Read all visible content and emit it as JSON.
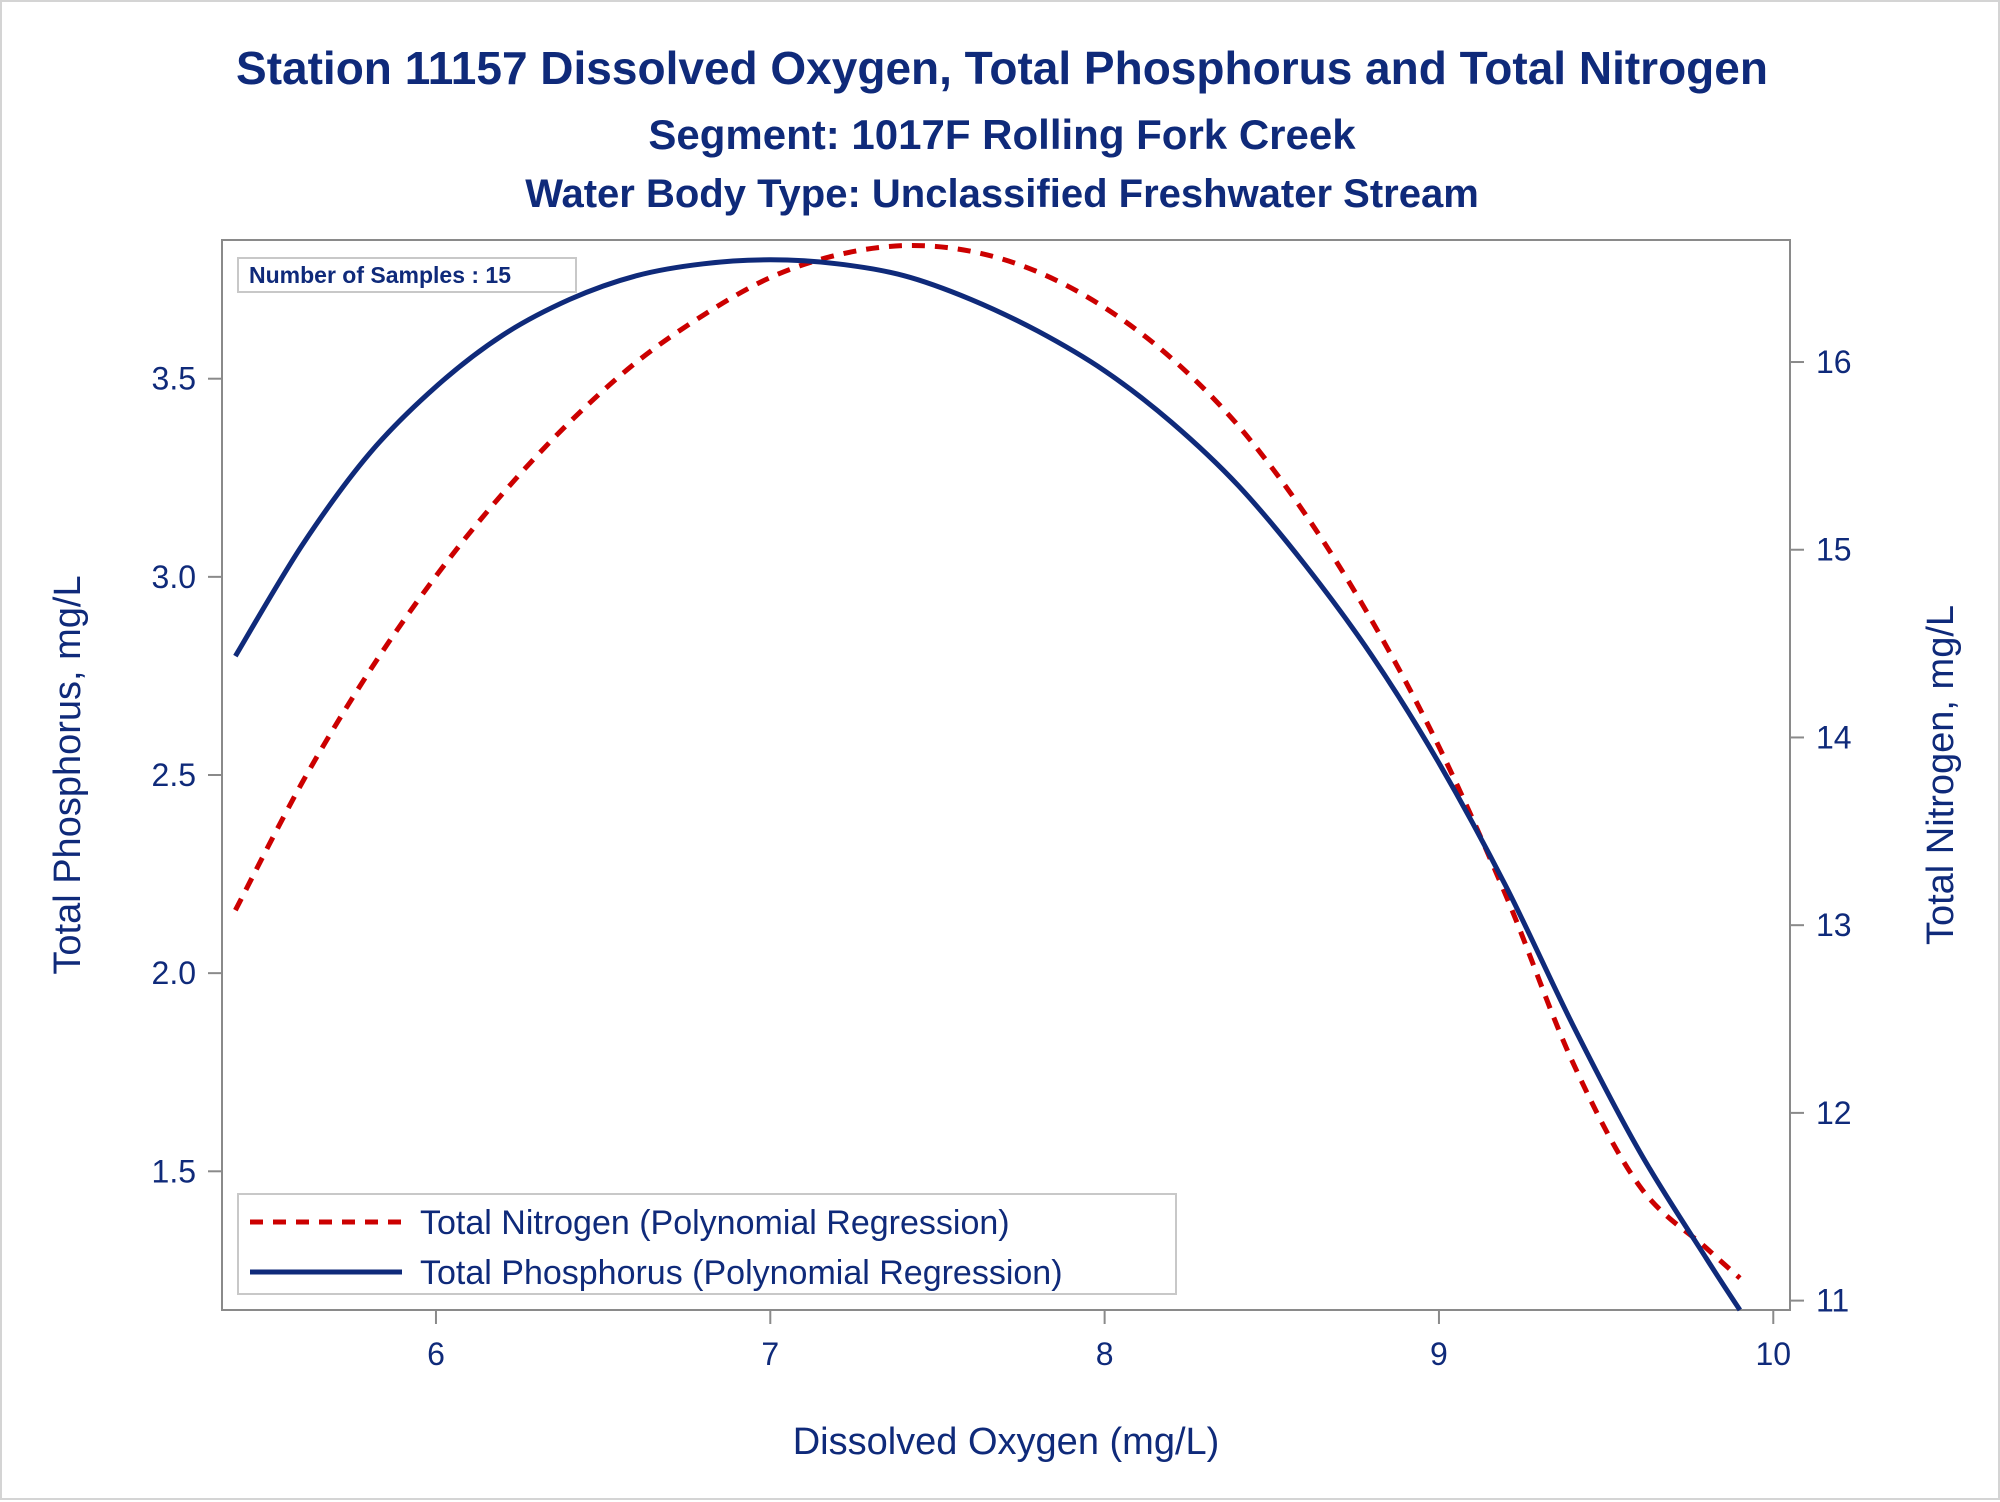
{
  "chart_data": {
    "type": "line",
    "title": "Station 11157  Dissolved Oxygen, Total Phosphorus and Total Nitrogen",
    "subtitle": "Segment: 1017F  Rolling Fork Creek",
    "subtitle2": "Water Body Type: Unclassified Freshwater Stream",
    "annotation": "Number of Samples : 15",
    "xlabel": "Dissolved Oxygen (mg/L)",
    "ylabel_left": "Total Phosphorus, mg/L",
    "ylabel_right": "Total Nitrogen, mg/L",
    "xlim": [
      5.36,
      10.05
    ],
    "ylim_left": [
      1.15,
      3.85
    ],
    "ylim_right": [
      10.95,
      16.65
    ],
    "x_ticks": [
      "6",
      "7",
      "8",
      "9",
      "10"
    ],
    "y_left_ticks": [
      "1.5",
      "2.0",
      "2.5",
      "3.0",
      "3.5"
    ],
    "y_right_ticks": [
      "11",
      "12",
      "13",
      "14",
      "15",
      "16"
    ],
    "grid": false,
    "legend_position": "bottom-left",
    "series": [
      {
        "name": "Total Nitrogen (Polynomial Regression)",
        "axis": "right",
        "color": "#cc0000",
        "dash": "dashed",
        "x": [
          5.4,
          5.6,
          5.8,
          6.0,
          6.2,
          6.4,
          6.6,
          6.8,
          7.0,
          7.2,
          7.4,
          7.6,
          7.8,
          8.0,
          8.2,
          8.4,
          8.6,
          8.8,
          9.0,
          9.2,
          9.4,
          9.6,
          9.8,
          9.9
        ],
        "values": [
          13.08,
          13.76,
          14.35,
          14.86,
          15.3,
          15.68,
          16.0,
          16.25,
          16.45,
          16.57,
          16.62,
          16.59,
          16.48,
          16.29,
          16.02,
          15.66,
          15.19,
          14.62,
          13.95,
          13.16,
          12.27,
          11.61,
          11.28,
          11.12
        ]
      },
      {
        "name": "Total Phosphorus (Polynomial Regression)",
        "axis": "left",
        "color": "#0f2a7a",
        "dash": "solid",
        "x": [
          5.4,
          5.6,
          5.8,
          6.0,
          6.2,
          6.4,
          6.6,
          6.8,
          7.0,
          7.2,
          7.4,
          7.6,
          7.8,
          8.0,
          8.2,
          8.4,
          8.6,
          8.8,
          9.0,
          9.2,
          9.4,
          9.6,
          9.8,
          9.9
        ],
        "values": [
          2.8,
          3.08,
          3.31,
          3.48,
          3.61,
          3.7,
          3.76,
          3.79,
          3.8,
          3.79,
          3.76,
          3.7,
          3.62,
          3.52,
          3.39,
          3.23,
          3.03,
          2.8,
          2.53,
          2.22,
          1.87,
          1.55,
          1.28,
          1.15
        ]
      }
    ]
  }
}
